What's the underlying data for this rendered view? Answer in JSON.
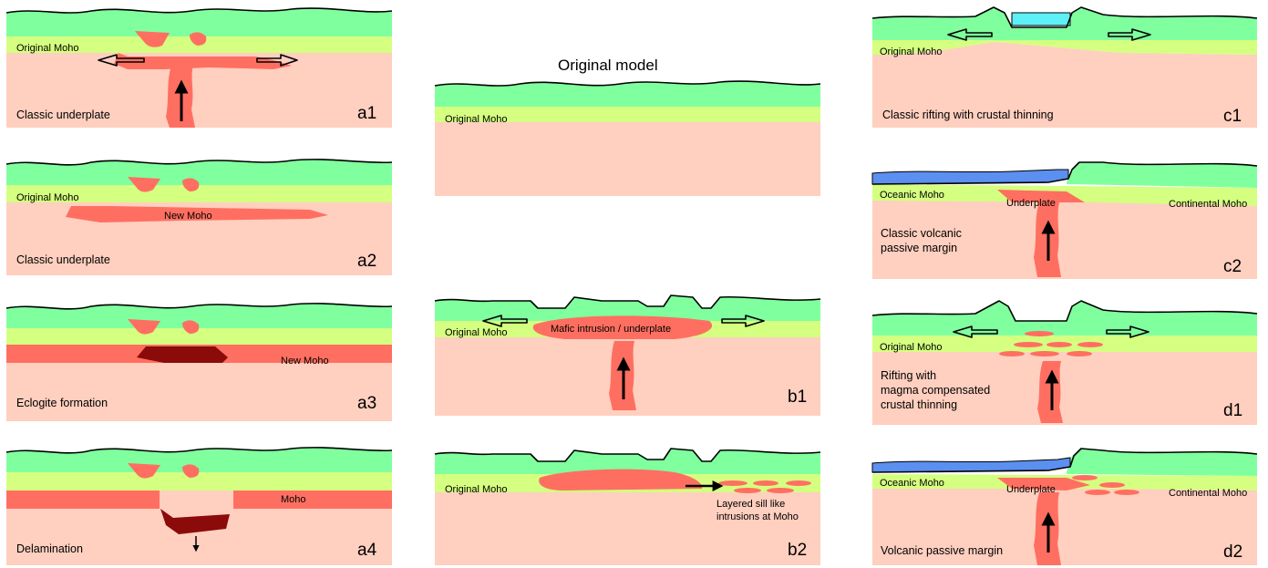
{
  "colors": {
    "crust": "#80ff9e",
    "lower_crust": "#d5ff80",
    "mantle": "#ffcfbf",
    "magma": "#ff6f61",
    "eclogite": "#8b0a0a",
    "ocean": "#5b8ff0",
    "sea": "#5ef0f7"
  },
  "panels": {
    "a1": {
      "id": "a1",
      "caption": "Classic underplate",
      "moho": "Original Moho"
    },
    "a2": {
      "id": "a2",
      "caption": "Classic underplate",
      "moho": "Original Moho",
      "new_moho": "New Moho"
    },
    "a3": {
      "id": "a3",
      "caption": "Eclogite formation",
      "new_moho": "New Moho"
    },
    "a4": {
      "id": "a4",
      "caption": "Delamination",
      "moho": "Moho"
    },
    "orig": {
      "title": "Original model",
      "moho": "Original Moho"
    },
    "b1": {
      "id": "b1",
      "moho": "Original Moho",
      "intrusion": "Mafic intrusion  / underplate"
    },
    "b2": {
      "id": "b2",
      "moho": "Original Moho",
      "sills_line1": "Layered sill like",
      "sills_line2": "intrusions at Moho"
    },
    "c1": {
      "id": "c1",
      "caption": "Classic rifting with crustal thinning",
      "moho": "Original Moho"
    },
    "c2": {
      "id": "c2",
      "caption_line1": "Classic volcanic",
      "caption_line2": "passive margin",
      "oceanic_moho": "Oceanic Moho",
      "underplate": "Underplate",
      "continental_moho": "Continental Moho"
    },
    "d1": {
      "id": "d1",
      "caption_line1": "Rifting with",
      "caption_line2": "magma compensated",
      "caption_line3": "crustal thinning",
      "moho": "Original Moho"
    },
    "d2": {
      "id": "d2",
      "caption": "Volcanic passive margin",
      "oceanic_moho": "Oceanic Moho",
      "underplate": "Underplate",
      "continental_moho": "Continental Moho"
    }
  }
}
